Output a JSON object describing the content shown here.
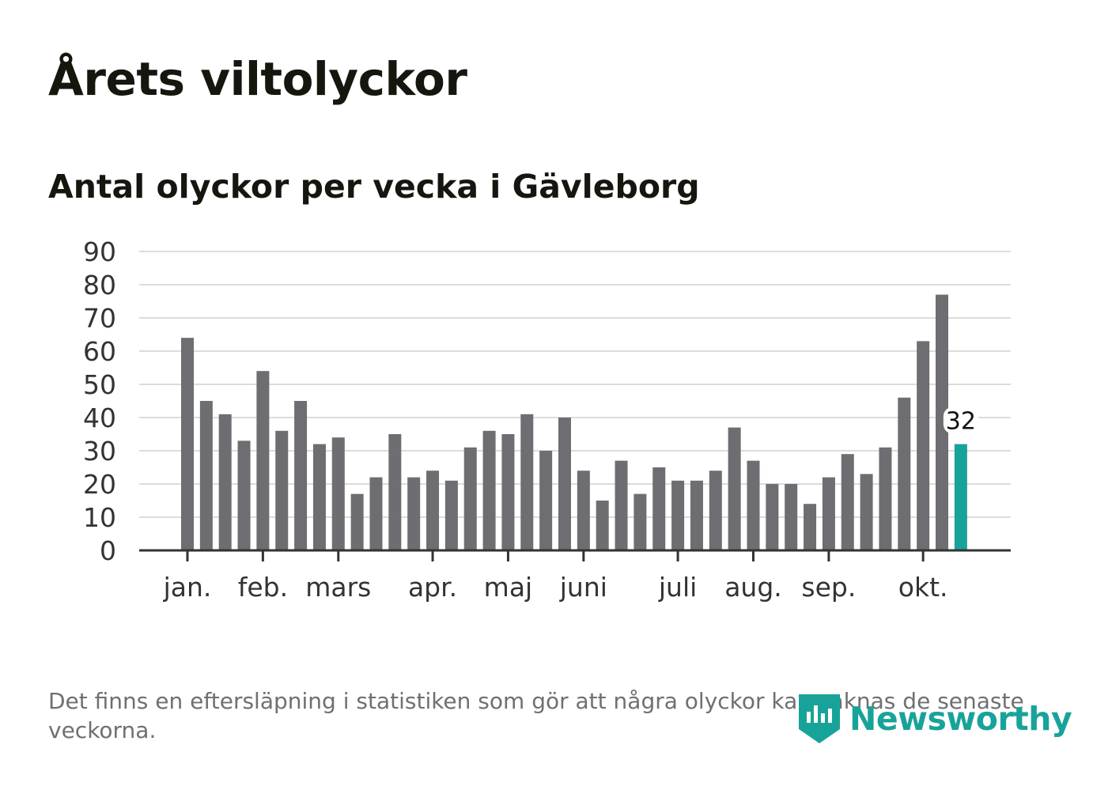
{
  "header": {
    "title": "Årets viltolyckor",
    "subtitle": "Antal olyckor per vecka i Gävleborg"
  },
  "chart_data": {
    "type": "bar",
    "title": "Årets viltolyckor",
    "subtitle": "Antal olyckor per vecka i Gävleborg",
    "xlabel": "",
    "ylabel": "",
    "ylim": [
      0,
      90
    ],
    "yticks": [
      0,
      10,
      20,
      30,
      40,
      50,
      60,
      70,
      80,
      90
    ],
    "grid": true,
    "values": [
      64,
      45,
      41,
      33,
      54,
      36,
      45,
      32,
      34,
      17,
      22,
      35,
      22,
      24,
      21,
      31,
      36,
      35,
      41,
      30,
      40,
      24,
      15,
      27,
      17,
      25,
      21,
      21,
      24,
      37,
      27,
      20,
      20,
      14,
      22,
      29,
      23,
      31,
      46,
      63,
      77,
      32
    ],
    "month_ticks": [
      {
        "label": "jan.",
        "week_index": 0
      },
      {
        "label": "feb.",
        "week_index": 4
      },
      {
        "label": "mars",
        "week_index": 8
      },
      {
        "label": "apr.",
        "week_index": 13
      },
      {
        "label": "maj",
        "week_index": 17
      },
      {
        "label": "juni",
        "week_index": 21
      },
      {
        "label": "juli",
        "week_index": 26
      },
      {
        "label": "aug.",
        "week_index": 30
      },
      {
        "label": "sep.",
        "week_index": 34
      },
      {
        "label": "okt.",
        "week_index": 39
      }
    ],
    "highlight": {
      "week_index": 41,
      "label": "32"
    }
  },
  "colors": {
    "bar": "#6e6d72",
    "highlight": "#17a39a",
    "grid": "#dcdcdc",
    "axis": "#333333",
    "text": "#16160f"
  },
  "footer": {
    "note": "Det finns en eftersläpning i statistiken som gör att några olyckor kan saknas de senaste veckorna.",
    "brand": "Newsworthy",
    "brand_icon": "newsworthy-logo-icon"
  }
}
